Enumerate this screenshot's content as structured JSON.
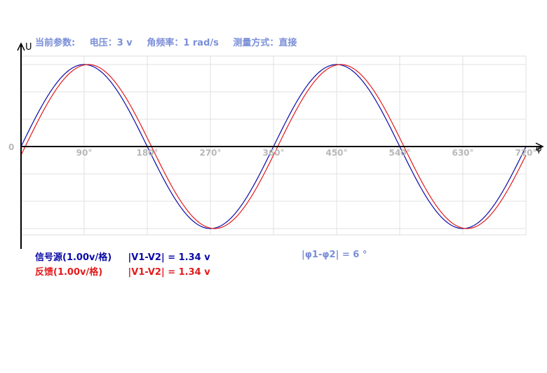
{
  "params": {
    "label": "当前参数:",
    "voltage": "电压：3 v",
    "angular_frequency": "角频率：1 rad/s",
    "method": "测量方式：直接"
  },
  "legend": {
    "source": {
      "name": "信号源(1.00v/格)",
      "value": "|V1-V2| = 1.34 v",
      "color": "#0a0aa8"
    },
    "feedback": {
      "name": "反馈(1.00v/格)",
      "value": "|V1-V2| = 1.34 v",
      "color": "#e31b1b"
    }
  },
  "phase_diff": "|φ1-φ2| = 6 °",
  "chart_data": {
    "type": "line",
    "ylabel": "U",
    "xlabel": "φ",
    "y_zero_label": "0",
    "x_ticks": [
      90,
      180,
      270,
      360,
      450,
      540,
      630,
      720
    ],
    "x_tick_labels": [
      "90°",
      "180°",
      "270°",
      "360°",
      "450°",
      "540°",
      "630°",
      "720°"
    ],
    "xlim": [
      0,
      720
    ],
    "ylim": [
      -3,
      3
    ],
    "grid": true,
    "series": [
      {
        "name": "信号源",
        "color": "#0a0aa8",
        "amplitude": 3,
        "phase_deg": 0
      },
      {
        "name": "反馈",
        "color": "#e31b1b",
        "amplitude": 3,
        "phase_deg": 6
      }
    ]
  }
}
